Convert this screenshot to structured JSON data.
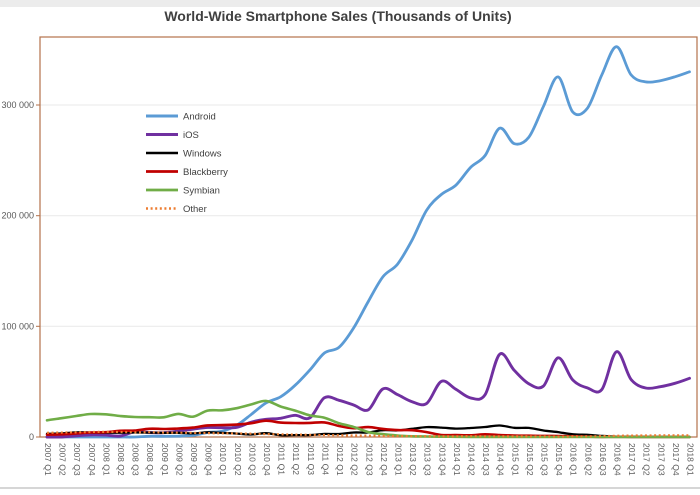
{
  "window": {
    "title": "World-Wide Smartphone Sales (Thousands of Units)"
  },
  "chart_data": {
    "type": "line",
    "title": "World-Wide Smartphone Sales (Thousands of Units)",
    "smoothed": true,
    "grid": "horizontal",
    "legend_position": "inside-top-left",
    "ylim": [
      0,
      361500
    ],
    "colors": {
      "axis": "#b3714b",
      "grid": "#e9e9e9",
      "tick_text": "#595959",
      "title_text": "#404040"
    },
    "y_ticks": [
      {
        "value": 0,
        "label": "0"
      },
      {
        "value": 100000,
        "label": "100 000"
      },
      {
        "value": 200000,
        "label": "200 000"
      },
      {
        "value": 300000,
        "label": "300 000"
      }
    ],
    "x_categories": [
      "2007 Q1",
      "2007 Q2",
      "2007 Q3",
      "2007 Q4",
      "2008 Q1",
      "2008 Q2",
      "2008 Q3",
      "2008 Q4",
      "2009 Q1",
      "2009 Q2",
      "2009 Q3",
      "2009 Q4",
      "2010 Q1",
      "2010 Q2",
      "2010 Q3",
      "2010 Q4",
      "2011 Q1",
      "2011 Q2",
      "2011 Q3",
      "2011 Q4",
      "2012 Q1",
      "2012 Q2",
      "2012 Q3",
      "2012 Q4",
      "2013 Q1",
      "2013 Q2",
      "2013 Q3",
      "2013 Q4",
      "2014 Q1",
      "2014 Q2",
      "2014 Q3",
      "2014 Q4",
      "2015 Q1",
      "2015 Q2",
      "2015 Q3",
      "2015 Q4",
      "2016 Q1",
      "2016 Q2",
      "2016 Q3",
      "2016 Q4",
      "2017 Q1",
      "2017 Q2",
      "2017 Q3",
      "2017 Q4",
      "2018 Q1"
    ],
    "series": [
      {
        "name": "Android",
        "color": "#5B9BD5",
        "style": "solid",
        "values": [
          0,
          0,
          0,
          0,
          0,
          0,
          0,
          640,
          575,
          756,
          1425,
          4043,
          5227,
          10653,
          20544,
          30801,
          36350,
          46776,
          60490,
          75906,
          81067,
          98529,
          122480,
          144720,
          156186,
          177898,
          205023,
          219158,
          227549,
          243484,
          254354,
          279058,
          265012,
          271010,
          298797,
          325394,
          293771,
          296912,
          327354,
          352670,
          327164,
          320897,
          322000,
          325500,
          330000
        ]
      },
      {
        "name": "iOS",
        "color": "#7030A0",
        "style": "solid",
        "values": [
          0,
          0,
          1126,
          1928,
          1726,
          893,
          4720,
          4079,
          3848,
          5325,
          7040,
          8676,
          8360,
          8743,
          13484,
          16011,
          16883,
          19629,
          17295,
          35456,
          33121,
          28935,
          24620,
          43457,
          38332,
          31900,
          30330,
          50224,
          43062,
          35345,
          38187,
          74832,
          60177,
          48086,
          46062,
          71526,
          51630,
          44395,
          43001,
          77039,
          51993,
          44314,
          45442,
          48500,
          53000
        ]
      },
      {
        "name": "Windows",
        "color": "#000000",
        "style": "solid",
        "values": [
          2931,
          3212,
          4180,
          4075,
          3858,
          3874,
          4053,
          3995,
          3739,
          3830,
          3260,
          4203,
          3696,
          3059,
          2248,
          3419,
          1600,
          1724,
          1702,
          2759,
          2713,
          4087,
          4058,
          6186,
          5989,
          7407,
          8912,
          8534,
          7580,
          8095,
          9033,
          10425,
          8271,
          8198,
          5874,
          4395,
          2400,
          1971,
          966,
          300,
          300,
          100,
          100,
          100,
          100
        ]
      },
      {
        "name": "Blackberry",
        "color": "#C00000",
        "style": "solid",
        "values": [
          2080,
          2471,
          3192,
          4025,
          4312,
          5594,
          5800,
          7443,
          7233,
          7678,
          8523,
          10508,
          10753,
          11229,
          12508,
          14762,
          13004,
          12652,
          12701,
          13185,
          9939,
          7991,
          8947,
          7333,
          6219,
          6180,
          4401,
          1807,
          1714,
          1500,
          2420,
          1734,
          1325,
          1153,
          977,
          907,
          660,
          400,
          100,
          208,
          100,
          50,
          0,
          0,
          0
        ]
      },
      {
        "name": "Symbian",
        "color": "#70AD47",
        "style": "solid",
        "values": [
          15100,
          17000,
          19000,
          20800,
          20500,
          19000,
          18100,
          17900,
          17800,
          20900,
          18300,
          23900,
          24100,
          26000,
          29500,
          32600,
          27599,
          23853,
          19500,
          17458,
          12467,
          9072,
          4405,
          2569,
          1349,
          631,
          458,
          263,
          200,
          100,
          100,
          100,
          100,
          0,
          0,
          0,
          0,
          0,
          0,
          0,
          0,
          0,
          0,
          0,
          0
        ]
      },
      {
        "name": "Other",
        "color": "#ED7D31",
        "style": "dotted",
        "values": [
          3800,
          4000,
          4200,
          4500,
          4600,
          4500,
          4200,
          4300,
          4000,
          3900,
          3700,
          3500,
          3300,
          3200,
          3000,
          2600,
          2400,
          2200,
          2000,
          1800,
          1600,
          1400,
          1200,
          1000,
          900,
          800,
          700,
          600,
          600,
          700,
          600,
          600,
          600,
          500,
          500,
          400,
          500,
          500,
          800,
          1100,
          1300,
          1400,
          1500,
          1500,
          1500
        ]
      }
    ]
  }
}
